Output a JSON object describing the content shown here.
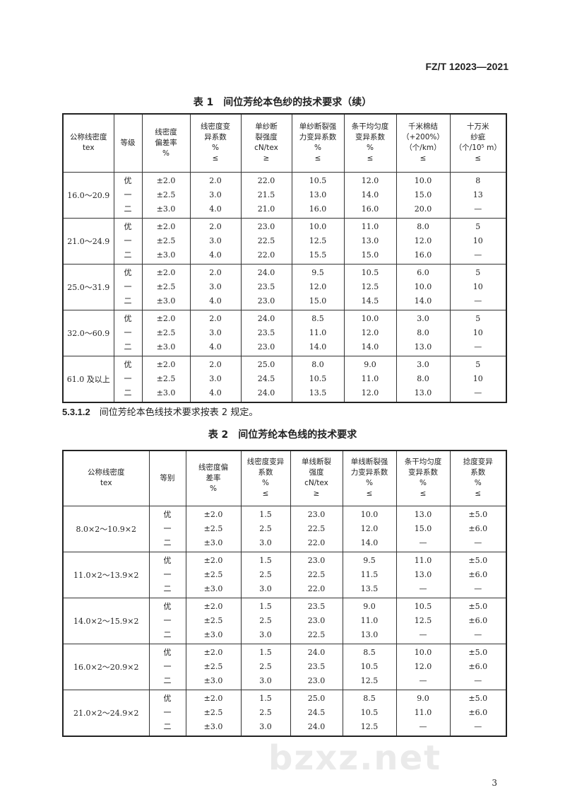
{
  "header": {
    "standard_no": "FZ/T 12023—2021"
  },
  "table1": {
    "caption": "表 1　间位芳纶本色纱的技术要求（续）",
    "headers": [
      [
        "公称线密度",
        "tex"
      ],
      [
        "等级"
      ],
      [
        "线密度",
        "偏差率",
        "%"
      ],
      [
        "线密度变",
        "异系数",
        "%",
        "≤"
      ],
      [
        "单纱断",
        "裂强度",
        "cN/tex",
        "≥"
      ],
      [
        "单纱断裂强",
        "力变异系数",
        "%",
        "≤"
      ],
      [
        "条干均匀度",
        "变异系数",
        "%",
        "≤"
      ],
      [
        "千米棉结",
        "（+200%）",
        "（个/km）",
        "≤"
      ],
      [
        "十万米",
        "纱疵",
        "（个/10⁵ m）",
        "≤"
      ]
    ],
    "groups": [
      {
        "density": "16.0～20.9",
        "rows": [
          [
            "优",
            "±2.0",
            "2.0",
            "22.0",
            "10.5",
            "12.0",
            "10.0",
            "8"
          ],
          [
            "一",
            "±2.5",
            "3.0",
            "21.5",
            "13.0",
            "14.0",
            "15.0",
            "13"
          ],
          [
            "二",
            "±3.0",
            "4.0",
            "21.0",
            "16.0",
            "16.0",
            "20.0",
            "—"
          ]
        ]
      },
      {
        "density": "21.0～24.9",
        "rows": [
          [
            "优",
            "±2.0",
            "2.0",
            "23.0",
            "10.0",
            "11.0",
            "8.0",
            "5"
          ],
          [
            "一",
            "±2.5",
            "3.0",
            "22.5",
            "12.5",
            "13.0",
            "12.0",
            "10"
          ],
          [
            "二",
            "±3.0",
            "4.0",
            "22.0",
            "15.5",
            "15.0",
            "16.0",
            "—"
          ]
        ]
      },
      {
        "density": "25.0～31.9",
        "rows": [
          [
            "优",
            "±2.0",
            "2.0",
            "24.0",
            "9.5",
            "10.5",
            "6.0",
            "5"
          ],
          [
            "一",
            "±2.5",
            "3.0",
            "23.5",
            "12.0",
            "12.5",
            "10.0",
            "10"
          ],
          [
            "二",
            "±3.0",
            "4.0",
            "23.0",
            "15.0",
            "14.5",
            "14.0",
            "—"
          ]
        ]
      },
      {
        "density": "32.0～60.9",
        "rows": [
          [
            "优",
            "±2.0",
            "2.0",
            "24.0",
            "8.5",
            "10.0",
            "3.0",
            "5"
          ],
          [
            "一",
            "±2.5",
            "3.0",
            "23.5",
            "11.0",
            "12.0",
            "8.0",
            "10"
          ],
          [
            "二",
            "±3.0",
            "4.0",
            "23.0",
            "14.0",
            "14.0",
            "13.0",
            "—"
          ]
        ]
      },
      {
        "density": "61.0 及以上",
        "rows": [
          [
            "优",
            "±2.0",
            "2.0",
            "25.0",
            "8.0",
            "9.0",
            "3.0",
            "5"
          ],
          [
            "一",
            "±2.5",
            "3.0",
            "24.5",
            "10.5",
            "11.0",
            "8.0",
            "10"
          ],
          [
            "二",
            "±3.0",
            "4.0",
            "24.0",
            "13.5",
            "12.0",
            "13.0",
            "—"
          ]
        ]
      }
    ]
  },
  "clause": {
    "number": "5.3.1.2",
    "text": "间位芳纶本色线技术要求按表 2 规定。"
  },
  "table2": {
    "caption": "表 2　间位芳纶本色线的技术要求",
    "headers": [
      [
        "公称线密度",
        "tex"
      ],
      [
        "等别"
      ],
      [
        "线密度偏",
        "差率",
        "%"
      ],
      [
        "线密度变异",
        "系数",
        "%",
        "≤"
      ],
      [
        "单线断裂",
        "强度",
        "cN/tex",
        "≥"
      ],
      [
        "单线断裂强",
        "力变异系数",
        "%",
        "≤"
      ],
      [
        "条干均匀度",
        "变异系数",
        "%",
        "≤"
      ],
      [
        "捻度变异",
        "系数",
        "%",
        "≤"
      ]
    ],
    "groups": [
      {
        "density": "8.0×2～10.9×2",
        "rows": [
          [
            "优",
            "±2.0",
            "1.5",
            "23.0",
            "10.0",
            "13.0",
            "±5.0"
          ],
          [
            "一",
            "±2.5",
            "2.5",
            "22.5",
            "12.0",
            "15.0",
            "±6.0"
          ],
          [
            "二",
            "±3.0",
            "3.0",
            "22.0",
            "14.0",
            "—",
            "—"
          ]
        ]
      },
      {
        "density": "11.0×2～13.9×2",
        "rows": [
          [
            "优",
            "±2.0",
            "1.5",
            "23.0",
            "9.5",
            "11.0",
            "±5.0"
          ],
          [
            "一",
            "±2.5",
            "2.5",
            "22.5",
            "11.5",
            "13.0",
            "±6.0"
          ],
          [
            "二",
            "±3.0",
            "3.0",
            "22.0",
            "13.5",
            "—",
            "—"
          ]
        ]
      },
      {
        "density": "14.0×2～15.9×2",
        "rows": [
          [
            "优",
            "±2.0",
            "1.5",
            "23.5",
            "9.0",
            "10.5",
            "±5.0"
          ],
          [
            "一",
            "±2.5",
            "2.5",
            "23.0",
            "11.0",
            "12.5",
            "±6.0"
          ],
          [
            "二",
            "±3.0",
            "3.0",
            "22.5",
            "13.0",
            "—",
            "—"
          ]
        ]
      },
      {
        "density": "16.0×2～20.9×2",
        "rows": [
          [
            "优",
            "±2.0",
            "1.5",
            "24.0",
            "8.5",
            "10.0",
            "±5.0"
          ],
          [
            "一",
            "±2.5",
            "2.5",
            "23.5",
            "10.5",
            "12.0",
            "±6.0"
          ],
          [
            "二",
            "±3.0",
            "3.0",
            "23.0",
            "12.5",
            "—",
            "—"
          ]
        ]
      },
      {
        "density": "21.0×2～24.9×2",
        "rows": [
          [
            "优",
            "±2.0",
            "1.5",
            "25.0",
            "8.5",
            "9.0",
            "±5.0"
          ],
          [
            "一",
            "±2.5",
            "2.5",
            "24.5",
            "10.5",
            "11.0",
            "±6.0"
          ],
          [
            "二",
            "±3.0",
            "3.0",
            "24.0",
            "12.5",
            "—",
            "—"
          ]
        ]
      }
    ]
  },
  "footer": {
    "page_number": "3",
    "watermark": "bzxz.net"
  }
}
